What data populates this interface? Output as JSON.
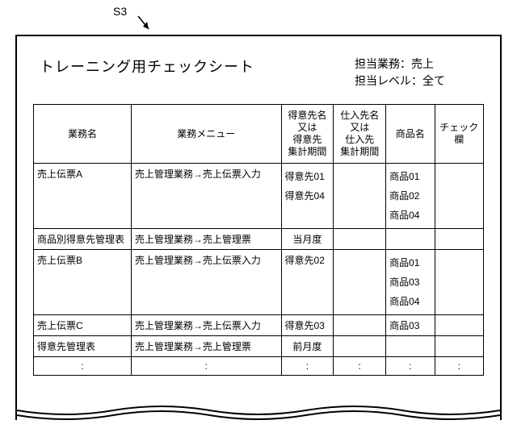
{
  "label": "S3",
  "title": "トレーニング用チェックシート",
  "meta": {
    "line1": "担当業務：売上",
    "line2": "担当レベル：全て"
  },
  "columns": {
    "task": "業務名",
    "menu": "業務メニュー",
    "customer": "得意先名\n又は\n得意先\n集計期間",
    "supplier": "仕入先名\n又は\n仕入先\n集計期間",
    "product": "商品名",
    "check": "チェック欄"
  },
  "rows": [
    {
      "task": "売上伝票A",
      "menu": "売上管理業務→売上伝票入力",
      "customer": "得意先01\n得意先04",
      "supplier": "",
      "product": "商品01\n商品02\n商品04",
      "check": "",
      "kind": "tall"
    },
    {
      "task": "商品別得意先管理表",
      "menu": "売上管理業務→売上管理票",
      "customer": "当月度",
      "supplier": "",
      "product": "",
      "check": "",
      "kind": "normctr"
    },
    {
      "task": "売上伝票B",
      "menu": "売上管理業務→売上伝票入力",
      "customer": "得意先02",
      "supplier": "",
      "product": "商品01\n商品03\n商品04",
      "check": "",
      "kind": "tall"
    },
    {
      "task": "売上伝票C",
      "menu": "売上管理業務→売上伝票入力",
      "customer": "得意先03",
      "supplier": "",
      "product": "商品03",
      "check": "",
      "kind": "norm"
    },
    {
      "task": "得意先管理表",
      "menu": "売上管理業務→売上管理票",
      "customer": "前月度",
      "supplier": "",
      "product": "",
      "check": "",
      "kind": "normctr"
    },
    {
      "task": ":",
      "menu": ":",
      "customer": ":",
      "supplier": ":",
      "product": ":",
      "check": ":",
      "kind": "ellip"
    }
  ],
  "style": {
    "background": "#ffffff",
    "border_color": "#000000",
    "font_family": "MS Gothic"
  }
}
